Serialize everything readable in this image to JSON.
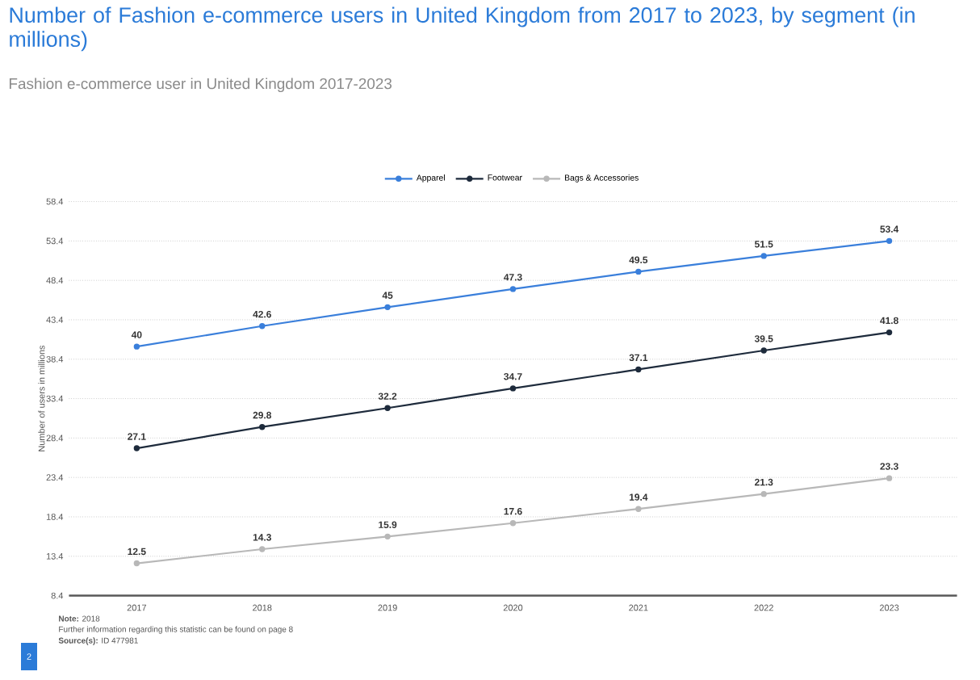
{
  "chart_data": {
    "type": "line",
    "title": "Number of Fashion e-commerce users in United Kingdom from 2017 to 2023, by segment (in millions)",
    "subtitle": "Fashion e-commerce user in United Kingdom 2017-2023",
    "ylabel": "Number of users in millions",
    "categories": [
      "2017",
      "2018",
      "2019",
      "2020",
      "2021",
      "2022",
      "2023"
    ],
    "series": [
      {
        "name": "Apparel",
        "color": "#3a7fdb",
        "values": [
          40,
          42.6,
          45,
          47.3,
          49.5,
          51.5,
          53.4
        ]
      },
      {
        "name": "Footwear",
        "color": "#1e2b3c",
        "values": [
          27.1,
          29.8,
          32.2,
          34.7,
          37.1,
          39.5,
          41.8
        ]
      },
      {
        "name": "Bags & Accessories",
        "color": "#b8b8b8",
        "values": [
          12.5,
          14.3,
          15.9,
          17.6,
          19.4,
          21.3,
          23.3
        ]
      }
    ],
    "ylim": [
      8.4,
      58.4
    ],
    "yticks": [
      8.4,
      13.4,
      18.4,
      23.4,
      28.4,
      33.4,
      38.4,
      43.4,
      48.4,
      53.4,
      58.4
    ],
    "grid": "y",
    "legend": "top",
    "marker": "circle",
    "line_style": "solid",
    "data_labels": true,
    "annotations": [
      "**Note:** 2018",
      "Further information regarding this statistic can be found on page 8",
      "**Source(s):** ID 477981",
      "2"
    ]
  }
}
